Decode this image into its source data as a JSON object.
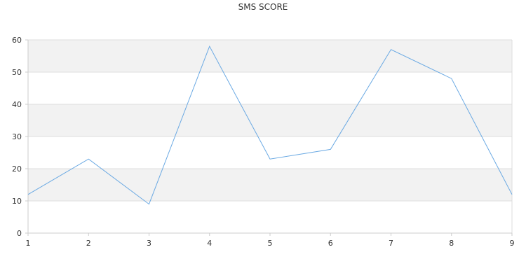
{
  "chart_data": {
    "type": "line",
    "title": "SMS SCORE",
    "xlabel": "",
    "ylabel": "",
    "x": [
      1,
      2,
      3,
      4,
      5,
      6,
      7,
      8,
      9
    ],
    "series": [
      {
        "values": [
          12,
          23,
          9,
          58,
          23,
          26,
          57,
          48,
          12
        ]
      }
    ],
    "xlim": [
      1,
      9
    ],
    "ylim": [
      0,
      60
    ],
    "yticks": [
      0,
      10,
      20,
      30,
      40,
      50,
      60
    ],
    "xticks": [
      1,
      2,
      3,
      4,
      5,
      6,
      7,
      8,
      9
    ],
    "grid": true,
    "banded_background": true,
    "legend": "none",
    "colors": {
      "line": "#6aa9e3",
      "band": "#f2f2f2",
      "grid": "#dddddd",
      "axis": "#cccccc",
      "text": "#333333"
    }
  }
}
